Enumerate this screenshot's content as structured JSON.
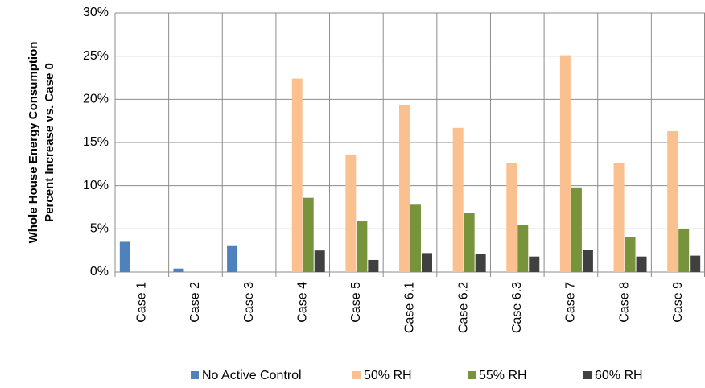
{
  "chart_data": {
    "type": "bar",
    "y_label": [
      "Whole House Energy Consumption",
      "Percent Increase vs. Case 0"
    ],
    "categories": [
      "Case 1",
      "Case 2",
      "Case 3",
      "Case 4",
      "Case 5",
      "Case 6.1",
      "Case 6.2",
      "Case 6.3",
      "Case 7",
      "Case 8",
      "Case 9"
    ],
    "series": [
      {
        "name": "No Active Control",
        "color": "#4f81bd",
        "values": [
          3.5,
          0.4,
          3.1,
          null,
          null,
          null,
          null,
          null,
          null,
          null,
          null
        ]
      },
      {
        "name": "50% RH",
        "color": "#fac090",
        "values": [
          null,
          null,
          null,
          22.4,
          13.6,
          19.3,
          16.7,
          12.6,
          25.1,
          12.6,
          16.3
        ]
      },
      {
        "name": "55% RH",
        "color": "#77933c",
        "values": [
          null,
          null,
          null,
          8.6,
          5.9,
          7.8,
          6.8,
          5.5,
          9.8,
          4.1,
          5.0
        ]
      },
      {
        "name": "60% RH",
        "color": "#404040",
        "values": [
          null,
          null,
          null,
          2.5,
          1.4,
          2.2,
          2.1,
          1.8,
          2.6,
          1.8,
          1.9
        ]
      }
    ],
    "ylim": [
      0,
      30
    ],
    "yticks": [
      {
        "value": 0,
        "label": "0%"
      },
      {
        "value": 5,
        "label": "5%"
      },
      {
        "value": 10,
        "label": "10%"
      },
      {
        "value": 15,
        "label": "15%"
      },
      {
        "value": 20,
        "label": "20%"
      },
      {
        "value": 25,
        "label": "25%"
      },
      {
        "value": 30,
        "label": "30%"
      }
    ],
    "grid": true,
    "legend": "bottom"
  }
}
